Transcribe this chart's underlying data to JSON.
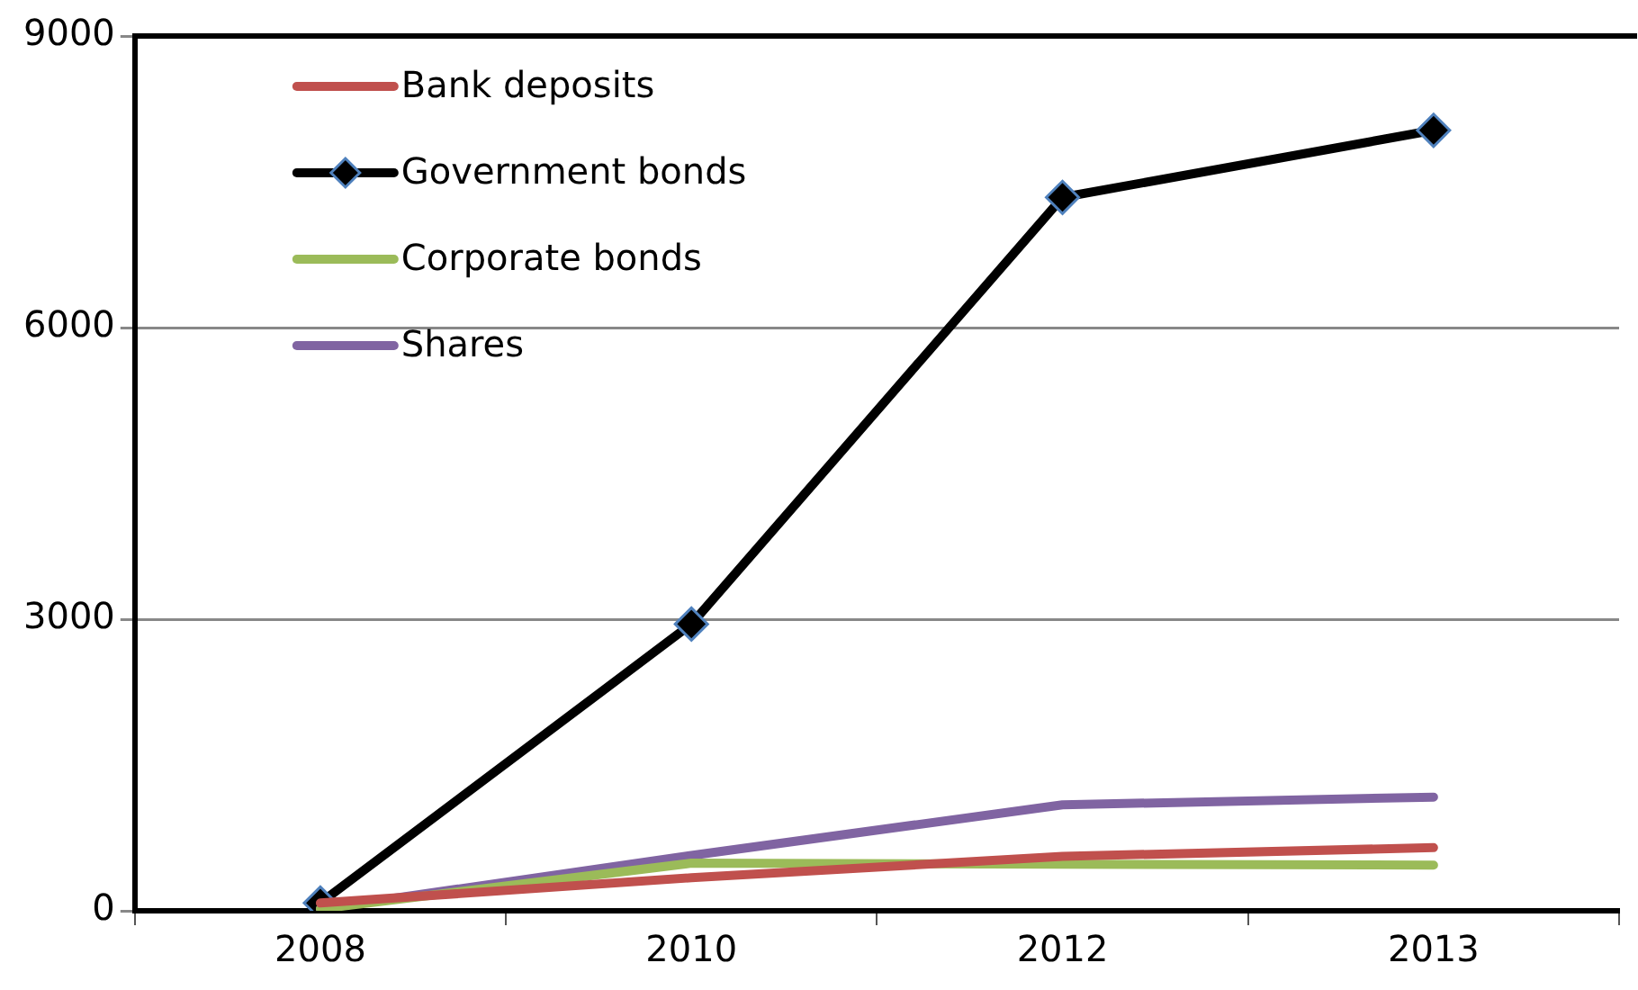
{
  "chart_data": {
    "type": "line",
    "categories": [
      "2008",
      "2010",
      "2012",
      "2013"
    ],
    "series": [
      {
        "name": "Bank deposits",
        "color": "#c0504d",
        "values": [
          80,
          340,
          560,
          650
        ],
        "marker": "none"
      },
      {
        "name": "Government bonds",
        "color": "#000000",
        "values": [
          80,
          2950,
          7340,
          8030
        ],
        "marker": "diamond"
      },
      {
        "name": "Corporate bonds",
        "color": "#9bbb59",
        "values": [
          20,
          490,
          480,
          470
        ],
        "marker": "none"
      },
      {
        "name": "Shares",
        "color": "#8064a2",
        "values": [
          20,
          570,
          1090,
          1170
        ],
        "marker": "none"
      }
    ],
    "ylim": [
      0,
      9000
    ],
    "yticks": [
      0,
      3000,
      6000,
      9000
    ],
    "grid": "y",
    "legend": "top left"
  }
}
